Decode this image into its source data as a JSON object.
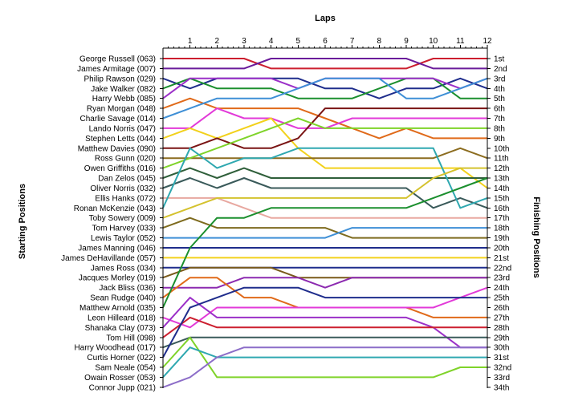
{
  "chart_data": {
    "type": "line",
    "title": "",
    "xlabel": "Laps",
    "ylabel_left": "Starting Positions",
    "ylabel_right": "Finishing Positions",
    "x": [
      0,
      1,
      2,
      3,
      4,
      5,
      6,
      7,
      8,
      9,
      10,
      11,
      12
    ],
    "x_tick_labels": [
      "1",
      "2",
      "3",
      "4",
      "5",
      "6",
      "7",
      "8",
      "9",
      "10",
      "11",
      "12"
    ],
    "y_axis": "position (1 = top), reversed",
    "ylim": [
      1,
      34
    ],
    "grid": false,
    "drivers": [
      "George Russell (063)",
      "James Armitage (007)",
      "Philip Rawson (029)",
      "Jake Walker (082)",
      "Harry Webb (085)",
      "Ryan Morgan (048)",
      "Charlie Savage (014)",
      "Lando Norris (047)",
      "Stephen Letts (044)",
      "Matthew Davies (090)",
      "Ross Gunn (020)",
      "Owen Griffiths (016)",
      "Dan Zelos (045)",
      "Oliver Norris (032)",
      "Ellis Hanks (072)",
      "Ronan McKenzie (043)",
      "Toby Sowery (009)",
      "Tom Harvey (033)",
      "Lewis Taylor (052)",
      "James Manning (046)",
      "James DeHavillande (057)",
      "James Ross (034)",
      "Jacques Morley (019)",
      "Jack Bliss (036)",
      "Sean Rudge (040)",
      "Matthew Arnold (035)",
      "Leon Hilleard (018)",
      "Shanaka Clay (073)",
      "Tom Hill (098)",
      "Harry Woodhead (017)",
      "Curtis Horner (022)",
      "Sam Neale (054)",
      "Owain Rosser (053)",
      "Connor Jupp (021)"
    ],
    "finishing_labels": [
      "1st",
      "2nd",
      "3rd",
      "4th",
      "5th",
      "6th",
      "7th",
      "8th",
      "9th",
      "10th",
      "11th",
      "12th",
      "13th",
      "14th",
      "15th",
      "16th",
      "17th",
      "18th",
      "19th",
      "20th",
      "21st",
      "22nd",
      "23rd",
      "24th",
      "25th",
      "26th",
      "27th",
      "28th",
      "29th",
      "30th",
      "31st",
      "32nd",
      "33rd",
      "34th"
    ],
    "series": [
      {
        "color": "#cc1f2f",
        "positions": [
          1,
          1,
          1,
          1,
          2,
          2,
          2,
          2,
          2,
          2,
          1,
          1,
          1
        ]
      },
      {
        "color": "#6a1b9a",
        "positions": [
          2,
          2,
          2,
          2,
          1,
          1,
          1,
          1,
          1,
          1,
          2,
          2,
          2
        ]
      },
      {
        "color": "#1f2d8c",
        "positions": [
          3,
          4,
          3,
          3,
          3,
          3,
          4,
          4,
          5,
          4,
          4,
          3,
          4
        ]
      },
      {
        "color": "#1b8f2e",
        "positions": [
          4,
          3,
          4,
          4,
          4,
          5,
          5,
          5,
          4,
          3,
          3,
          5,
          5
        ]
      },
      {
        "color": "#9b30c8",
        "positions": [
          5,
          3,
          3,
          3,
          3,
          4,
          3,
          3,
          3,
          3,
          3,
          4,
          3
        ]
      },
      {
        "color": "#e06a1a",
        "positions": [
          6,
          5,
          6,
          6,
          6,
          6,
          7,
          8,
          9,
          8,
          9,
          9,
          9
        ]
      },
      {
        "color": "#3e8fd6",
        "positions": [
          7,
          6,
          5,
          5,
          5,
          4,
          3,
          3,
          3,
          5,
          5,
          4,
          3
        ]
      },
      {
        "color": "#e23ad8",
        "positions": [
          8,
          8,
          6,
          7,
          7,
          8,
          8,
          7,
          7,
          7,
          7,
          7,
          7
        ]
      },
      {
        "color": "#f2d11b",
        "positions": [
          9,
          8,
          9,
          8,
          7,
          10,
          12,
          12,
          12,
          12,
          12,
          12,
          14
        ]
      },
      {
        "color": "#7a1414",
        "positions": [
          10,
          10,
          9,
          10,
          10,
          9,
          6,
          6,
          6,
          6,
          6,
          6,
          6
        ]
      },
      {
        "color": "#8c6d20",
        "positions": [
          11,
          11,
          11,
          11,
          11,
          11,
          11,
          11,
          11,
          11,
          11,
          10,
          11
        ]
      },
      {
        "color": "#7fd32a",
        "positions": [
          12,
          11,
          10,
          9,
          8,
          7,
          8,
          8,
          8,
          8,
          8,
          8,
          8
        ]
      },
      {
        "color": "#2f5f3a",
        "positions": [
          13,
          12,
          13,
          12,
          13,
          13,
          13,
          13,
          13,
          13,
          13,
          13,
          13
        ]
      },
      {
        "color": "#3a5a5a",
        "positions": [
          14,
          13,
          14,
          13,
          14,
          14,
          14,
          14,
          14,
          14,
          16,
          15,
          16
        ]
      },
      {
        "color": "#e8a8a0",
        "positions": [
          15,
          15,
          15,
          16,
          17,
          17,
          17,
          17,
          17,
          17,
          17,
          17,
          17
        ]
      },
      {
        "color": "#2fa8b0",
        "positions": [
          16,
          10,
          12,
          11,
          11,
          10,
          10,
          10,
          10,
          10,
          10,
          16,
          15
        ]
      },
      {
        "color": "#d4c22e",
        "positions": [
          17,
          16,
          15,
          15,
          15,
          15,
          15,
          15,
          15,
          15,
          13,
          12,
          12
        ]
      },
      {
        "color": "#7e6b1e",
        "positions": [
          18,
          17,
          18,
          18,
          18,
          18,
          18,
          19,
          19,
          19,
          19,
          19,
          19
        ]
      },
      {
        "color": "#3e8fd6",
        "positions": [
          19,
          19,
          19,
          19,
          19,
          19,
          19,
          18,
          18,
          18,
          18,
          18,
          18
        ]
      },
      {
        "color": "#1f2d8c",
        "positions": [
          20,
          20,
          20,
          20,
          20,
          20,
          20,
          20,
          20,
          20,
          20,
          20,
          20
        ]
      },
      {
        "color": "#f2d11b",
        "positions": [
          21,
          21,
          21,
          21,
          21,
          21,
          21,
          21,
          21,
          21,
          21,
          21,
          21
        ]
      },
      {
        "color": "#1f2d8c",
        "positions": [
          22,
          22,
          22,
          22,
          22,
          22,
          22,
          22,
          22,
          22,
          22,
          22,
          22
        ]
      },
      {
        "color": "#7a5a1a",
        "positions": [
          23,
          22,
          22,
          22,
          22,
          23,
          23,
          23,
          23,
          23,
          23,
          23,
          23
        ]
      },
      {
        "color": "#8c2ab0",
        "positions": [
          24,
          24,
          24,
          23,
          23,
          23,
          24,
          23,
          23,
          23,
          23,
          23,
          23
        ]
      },
      {
        "color": "#e06a1a",
        "positions": [
          25,
          23,
          23,
          25,
          25,
          26,
          26,
          26,
          26,
          26,
          27,
          27,
          27
        ]
      },
      {
        "color": "#1b8f2e",
        "positions": [
          26,
          20,
          17,
          17,
          16,
          16,
          16,
          16,
          16,
          16,
          15,
          14,
          13
        ]
      },
      {
        "color": "#e23ad8",
        "positions": [
          27,
          28,
          26,
          26,
          26,
          26,
          26,
          26,
          26,
          26,
          26,
          25,
          24
        ]
      },
      {
        "color": "#9b30c8",
        "positions": [
          28,
          25,
          27,
          27,
          27,
          27,
          27,
          27,
          27,
          27,
          28,
          30,
          30
        ]
      },
      {
        "color": "#cc1f2f",
        "positions": [
          29,
          27,
          28,
          28,
          28,
          28,
          28,
          28,
          28,
          28,
          28,
          28,
          28
        ]
      },
      {
        "color": "#3a5a5a",
        "positions": [
          30,
          29,
          29,
          29,
          29,
          29,
          29,
          29,
          29,
          29,
          29,
          29,
          29
        ]
      },
      {
        "color": "#1f2d8c",
        "positions": [
          31,
          26,
          25,
          24,
          24,
          24,
          25,
          25,
          25,
          25,
          25,
          25,
          25
        ]
      },
      {
        "color": "#7fd32a",
        "positions": [
          32,
          29,
          33,
          33,
          33,
          33,
          33,
          33,
          33,
          33,
          33,
          32,
          32
        ]
      },
      {
        "color": "#2fa8b0",
        "positions": [
          33,
          30,
          31,
          31,
          31,
          31,
          31,
          31,
          31,
          31,
          31,
          31,
          31
        ]
      },
      {
        "color": "#8c6dc8",
        "positions": [
          34,
          33,
          31,
          30,
          30,
          30,
          30,
          30,
          30,
          30,
          30,
          30,
          30
        ]
      }
    ]
  }
}
